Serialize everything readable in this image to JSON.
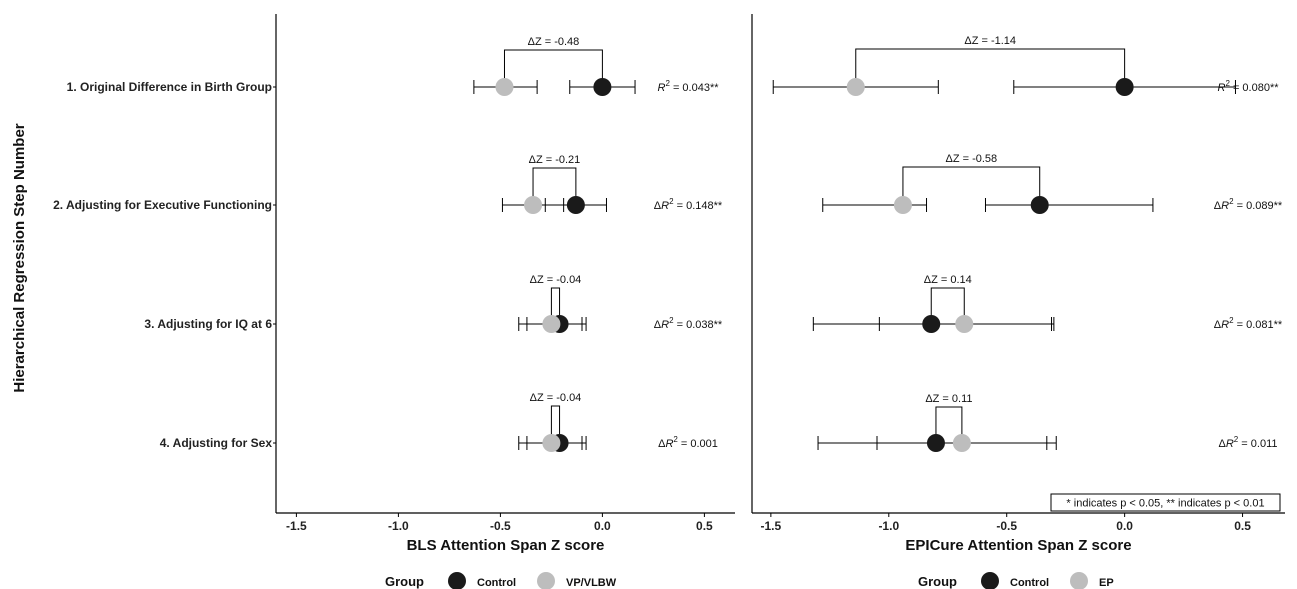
{
  "y_axis_title": "Hierarchical Regression Step Number",
  "steps": [
    "1. Original Difference in Birth Group",
    "2. Adjusting for Executive Functioning",
    "3. Adjusting for IQ at 6",
    "4. Adjusting for Sex"
  ],
  "note": "* indicates p < 0.05, ** indicates p < 0.01",
  "colors": {
    "control": "#1a1a1a",
    "comparison": "#bdbdbd",
    "axis": "#000000"
  },
  "chart_data": [
    {
      "type": "scatter",
      "title": "",
      "xlabel": "BLS Attention Span Z score",
      "ylabel": "Hierarchical Regression Step Number",
      "xlim": [
        -1.6,
        0.65
      ],
      "x_ticks": [
        -1.5,
        -1.0,
        -0.5,
        0.0,
        0.5
      ],
      "x_tick_labels": [
        "-1.5",
        "-1.0",
        "-0.5",
        "0.0",
        "0.5"
      ],
      "categories": [
        "1. Original Difference in Birth Group",
        "2. Adjusting for Executive Functioning",
        "3. Adjusting for IQ at 6",
        "4. Adjusting for Sex"
      ],
      "legend_title": "Group",
      "legend_position": "bottom",
      "series": [
        {
          "name": "Control",
          "values": [
            0.0,
            -0.13,
            -0.21,
            -0.21
          ],
          "ci_low": [
            -0.16,
            -0.28,
            -0.37,
            -0.37
          ],
          "ci_high": [
            0.16,
            0.02,
            -0.08,
            -0.08
          ]
        },
        {
          "name": "VP/VLBW",
          "values": [
            -0.48,
            -0.34,
            -0.25,
            -0.25
          ],
          "ci_low": [
            -0.63,
            -0.49,
            -0.41,
            -0.41
          ],
          "ci_high": [
            -0.32,
            -0.19,
            -0.1,
            -0.1
          ]
        }
      ],
      "delta_z": [
        "ΔZ = -0.48",
        "ΔZ = -0.21",
        "ΔZ = -0.04",
        "ΔZ = -0.04"
      ],
      "r_stats": [
        {
          "prefix": "R",
          "value": " = 0.043**"
        },
        {
          "prefix": "ΔR",
          "value": " = 0.148**"
        },
        {
          "prefix": "ΔR",
          "value": " = 0.038**"
        },
        {
          "prefix": "ΔR",
          "value": " = 0.001"
        }
      ],
      "r_sup": "2"
    },
    {
      "type": "scatter",
      "title": "",
      "xlabel": "EPICure Attention Span Z score",
      "ylabel": "",
      "xlim": [
        -1.58,
        0.68
      ],
      "x_ticks": [
        -1.5,
        -1.0,
        -0.5,
        0.0,
        0.5
      ],
      "x_tick_labels": [
        "-1.5",
        "-1.0",
        "-0.5",
        "0.0",
        "0.5"
      ],
      "categories": [
        "1. Original Difference in Birth Group",
        "2. Adjusting for Executive Functioning",
        "3. Adjusting for IQ at 6",
        "4. Adjusting for Sex"
      ],
      "legend_title": "Group",
      "legend_position": "bottom",
      "series": [
        {
          "name": "Control",
          "values": [
            0.0,
            -0.36,
            -0.82,
            -0.8
          ],
          "ci_low": [
            -0.47,
            -0.59,
            -1.04,
            -1.05
          ],
          "ci_high": [
            0.47,
            0.12,
            -0.31,
            -0.33
          ]
        },
        {
          "name": "EP",
          "values": [
            -1.14,
            -0.94,
            -0.68,
            -0.69
          ],
          "ci_low": [
            -1.49,
            -1.28,
            -1.32,
            -1.3
          ],
          "ci_high": [
            -0.79,
            -0.84,
            -0.3,
            -0.29
          ]
        }
      ],
      "delta_z": [
        "ΔZ = -1.14",
        "ΔZ = -0.58",
        "ΔZ = 0.14",
        "ΔZ = 0.11"
      ],
      "r_stats": [
        {
          "prefix": "R",
          "value": " = 0.080**"
        },
        {
          "prefix": "ΔR",
          "value": " = 0.089**"
        },
        {
          "prefix": "ΔR",
          "value": " = 0.081**"
        },
        {
          "prefix": "ΔR",
          "value": " = 0.011"
        }
      ],
      "r_sup": "2"
    }
  ]
}
